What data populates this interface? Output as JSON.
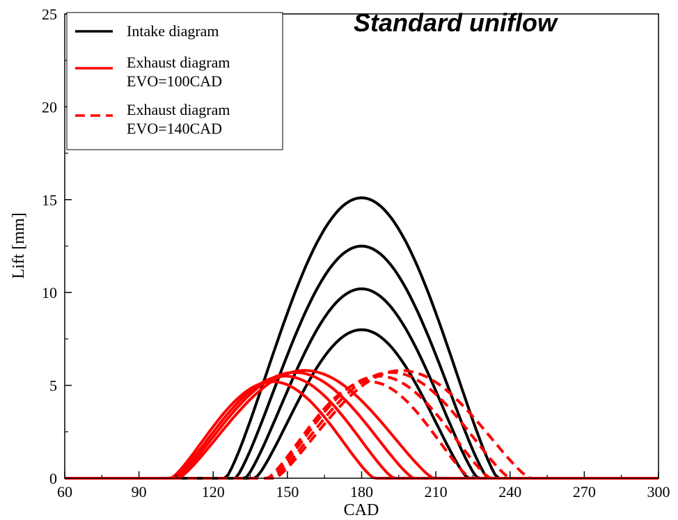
{
  "chart_data": {
    "type": "line",
    "title": "Standard uniflow",
    "xlabel": "CAD",
    "ylabel": "Lift [mm]",
    "xlim": [
      60,
      300
    ],
    "ylim": [
      0,
      25
    ],
    "xticks": [
      60,
      90,
      120,
      150,
      180,
      210,
      240,
      270,
      300
    ],
    "yticks": [
      0,
      5,
      10,
      15,
      20,
      25
    ],
    "grid": false,
    "legend_position": "top-left",
    "legend": [
      {
        "style": "solid",
        "color": "#000000",
        "lines": [
          "Intake diagram"
        ]
      },
      {
        "style": "solid",
        "color": "#ff0000",
        "lines": [
          "Exhaust diagram",
          "EVO=100CAD"
        ]
      },
      {
        "style": "dashed",
        "color": "#ff0000",
        "lines": [
          "Exhaust diagram",
          "EVO=140CAD"
        ]
      }
    ],
    "series": [
      {
        "group": "intake",
        "color": "#000000",
        "style": "solid",
        "open": 125,
        "close": 235,
        "peak_x": 180,
        "peak": 15.1
      },
      {
        "group": "intake",
        "color": "#000000",
        "style": "solid",
        "open": 129,
        "close": 231,
        "peak_x": 180,
        "peak": 12.5
      },
      {
        "group": "intake",
        "color": "#000000",
        "style": "solid",
        "open": 133,
        "close": 227,
        "peak_x": 180,
        "peak": 10.2
      },
      {
        "group": "intake",
        "color": "#000000",
        "style": "solid",
        "open": 137,
        "close": 223,
        "peak_x": 180,
        "peak": 8.0
      },
      {
        "group": "exhaust_evo100",
        "color": "#ff0000",
        "style": "solid",
        "open": 103,
        "close": 185,
        "peak_x": 144,
        "peak": 5.2
      },
      {
        "group": "exhaust_evo100",
        "color": "#ff0000",
        "style": "solid",
        "open": 104,
        "close": 193,
        "peak_x": 149,
        "peak": 5.5
      },
      {
        "group": "exhaust_evo100",
        "color": "#ff0000",
        "style": "solid",
        "open": 105,
        "close": 201,
        "peak_x": 153,
        "peak": 5.7
      },
      {
        "group": "exhaust_evo100",
        "color": "#ff0000",
        "style": "solid",
        "open": 106,
        "close": 209,
        "peak_x": 157,
        "peak": 5.8
      },
      {
        "group": "exhaust_evo140",
        "color": "#ff0000",
        "style": "dashed",
        "open": 142,
        "close": 224,
        "peak_x": 183,
        "peak": 5.2
      },
      {
        "group": "exhaust_evo140",
        "color": "#ff0000",
        "style": "dashed",
        "open": 143,
        "close": 232,
        "peak_x": 187,
        "peak": 5.5
      },
      {
        "group": "exhaust_evo140",
        "color": "#ff0000",
        "style": "dashed",
        "open": 144,
        "close": 240,
        "peak_x": 192,
        "peak": 5.7
      },
      {
        "group": "exhaust_evo140",
        "color": "#ff0000",
        "style": "dashed",
        "open": 145,
        "close": 248,
        "peak_x": 196,
        "peak": 5.8
      }
    ]
  }
}
